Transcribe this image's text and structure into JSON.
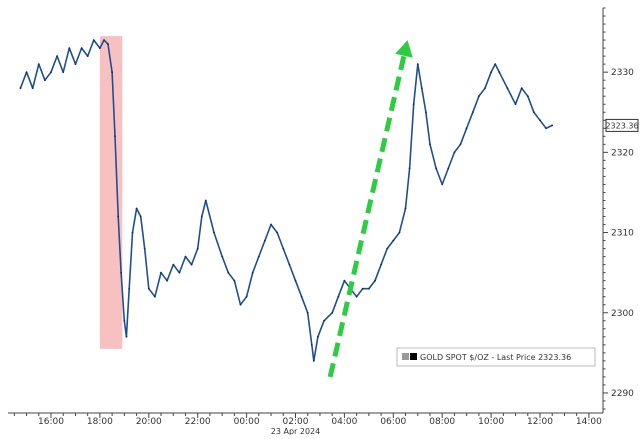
{
  "chart_data": {
    "type": "line",
    "x_start_label": "14:00",
    "x_tick_labels": [
      "16:00",
      "18:00",
      "20:00",
      "22:00",
      "00:00",
      "02:00",
      "04:00",
      "06:00",
      "08:00",
      "10:00",
      "12:00",
      "14:00"
    ],
    "date_label": "23 Apr 2024",
    "y_ticks": [
      2290,
      2300,
      2310,
      2320,
      2330
    ],
    "ylim": [
      2287.5,
      2338
    ],
    "grid": false,
    "legend": {
      "text": "GOLD SPOT $/OZ - Last Price 2323.36",
      "placement": "bottom-right"
    },
    "last_price_label": "2323.36",
    "last_price": 2323.36,
    "series": [
      {
        "name": "GOLD SPOT $/OZ",
        "color": "#1f4f8f",
        "values": [
          [
            "14:45",
            2328
          ],
          [
            "15:00",
            2330
          ],
          [
            "15:15",
            2328
          ],
          [
            "15:30",
            2331
          ],
          [
            "15:45",
            2329
          ],
          [
            "16:00",
            2330
          ],
          [
            "16:15",
            2332
          ],
          [
            "16:30",
            2330
          ],
          [
            "16:45",
            2333
          ],
          [
            "17:00",
            2331
          ],
          [
            "17:15",
            2333
          ],
          [
            "17:30",
            2332
          ],
          [
            "17:45",
            2334
          ],
          [
            "18:00",
            2333
          ],
          [
            "18:10",
            2334
          ],
          [
            "18:20",
            2333.5
          ],
          [
            "18:30",
            2330
          ],
          [
            "18:37",
            2322
          ],
          [
            "18:45",
            2312
          ],
          [
            "18:52",
            2305
          ],
          [
            "19:00",
            2299
          ],
          [
            "19:05",
            2297
          ],
          [
            "19:12",
            2303
          ],
          [
            "19:20",
            2310
          ],
          [
            "19:30",
            2313
          ],
          [
            "19:40",
            2312
          ],
          [
            "19:50",
            2308
          ],
          [
            "20:00",
            2303
          ],
          [
            "20:15",
            2302
          ],
          [
            "20:30",
            2305
          ],
          [
            "20:45",
            2304
          ],
          [
            "21:00",
            2306
          ],
          [
            "21:15",
            2305
          ],
          [
            "21:30",
            2307
          ],
          [
            "21:45",
            2306
          ],
          [
            "22:00",
            2308
          ],
          [
            "22:10",
            2312
          ],
          [
            "22:20",
            2314
          ],
          [
            "22:40",
            2310
          ],
          [
            "23:00",
            2307
          ],
          [
            "23:15",
            2305
          ],
          [
            "23:30",
            2304
          ],
          [
            "23:45",
            2301
          ],
          [
            "00:00",
            2302
          ],
          [
            "00:15",
            2305
          ],
          [
            "00:30",
            2307
          ],
          [
            "00:45",
            2309
          ],
          [
            "01:00",
            2311
          ],
          [
            "01:15",
            2310
          ],
          [
            "01:30",
            2308
          ],
          [
            "01:45",
            2306
          ],
          [
            "02:00",
            2304
          ],
          [
            "02:15",
            2302
          ],
          [
            "02:30",
            2300
          ],
          [
            "02:40",
            2296
          ],
          [
            "02:45",
            2294
          ],
          [
            "02:55",
            2297
          ],
          [
            "03:10",
            2299
          ],
          [
            "03:30",
            2300
          ],
          [
            "03:45",
            2302
          ],
          [
            "04:00",
            2304
          ],
          [
            "04:15",
            2303
          ],
          [
            "04:30",
            2302
          ],
          [
            "04:45",
            2303
          ],
          [
            "05:00",
            2303
          ],
          [
            "05:15",
            2304
          ],
          [
            "05:30",
            2306
          ],
          [
            "05:45",
            2308
          ],
          [
            "06:00",
            2309
          ],
          [
            "06:15",
            2310
          ],
          [
            "06:30",
            2313
          ],
          [
            "06:40",
            2318
          ],
          [
            "06:50",
            2326
          ],
          [
            "07:00",
            2331
          ],
          [
            "07:10",
            2328
          ],
          [
            "07:20",
            2325
          ],
          [
            "07:30",
            2321
          ],
          [
            "07:45",
            2318
          ],
          [
            "08:00",
            2316
          ],
          [
            "08:15",
            2318
          ],
          [
            "08:30",
            2320
          ],
          [
            "08:45",
            2321
          ],
          [
            "09:00",
            2323
          ],
          [
            "09:15",
            2325
          ],
          [
            "09:30",
            2327
          ],
          [
            "09:45",
            2328
          ],
          [
            "10:00",
            2330
          ],
          [
            "10:10",
            2331
          ],
          [
            "10:20",
            2330
          ],
          [
            "10:40",
            2328
          ],
          [
            "11:00",
            2326
          ],
          [
            "11:15",
            2328
          ],
          [
            "11:30",
            2327
          ],
          [
            "11:45",
            2325
          ],
          [
            "12:00",
            2324
          ],
          [
            "12:15",
            2323
          ],
          [
            "12:30",
            2323.36
          ]
        ]
      }
    ],
    "annotations": [
      {
        "name": "drop-highlight",
        "type": "shaded-region",
        "x_start": "18:00",
        "x_end": "18:55",
        "y_start": 2295.5,
        "y_end": 2334.5,
        "color": "#f4a6a6"
      },
      {
        "name": "rally-arrow",
        "type": "arrow",
        "from": [
          "03:25",
          2292
        ],
        "to": [
          "06:35",
          2334
        ],
        "color": "#2ecc40"
      }
    ]
  }
}
